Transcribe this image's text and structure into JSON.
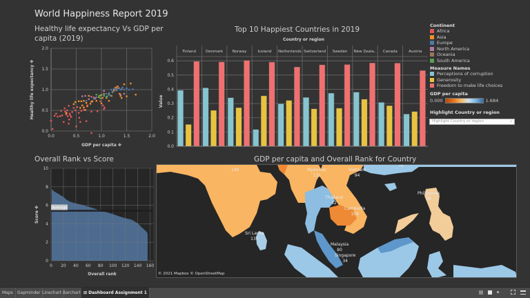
{
  "dashboard": {
    "title": "World Happiness Report 2019"
  },
  "scatter": {
    "title_line1": "Healthy life expectancy Vs GDP per",
    "title_line2": "capita (2019)",
    "chart_data": {
      "type": "scatter",
      "title": "Healthy life expectancy Vs GDP per capita (2019)",
      "xlabel": "GDP per capita",
      "ylabel": "Healthy life expectancy",
      "xlim": [
        0,
        2
      ],
      "ylim": [
        0,
        2
      ],
      "x_ticks": [
        "0.0",
        "0.5",
        "1.0",
        "1.5",
        "2.0"
      ],
      "y_ticks": [
        "0.0",
        "0.5",
        "1.0",
        "1.5",
        "2.0"
      ],
      "grid": true,
      "series": [
        {
          "name": "Africa",
          "color": "#e15759",
          "points": [
            [
              0.0,
              0.25
            ],
            [
              0.03,
              0.05
            ],
            [
              0.07,
              0.37
            ],
            [
              0.1,
              0.42
            ],
            [
              0.13,
              0.35
            ],
            [
              0.18,
              0.36
            ],
            [
              0.2,
              0.49
            ],
            [
              0.22,
              0.38
            ],
            [
              0.25,
              0.22
            ],
            [
              0.27,
              0.55
            ],
            [
              0.28,
              0.47
            ],
            [
              0.3,
              0.4
            ],
            [
              0.31,
              0.44
            ],
            [
              0.32,
              0.5
            ],
            [
              0.33,
              0.36
            ],
            [
              0.35,
              0.61
            ],
            [
              0.35,
              0.18
            ],
            [
              0.36,
              0.28
            ],
            [
              0.37,
              0.42
            ],
            [
              0.38,
              0.38
            ],
            [
              0.4,
              0.34
            ],
            [
              0.42,
              0.46
            ],
            [
              0.45,
              0.56
            ],
            [
              0.48,
              0.5
            ],
            [
              0.5,
              0.11
            ],
            [
              0.52,
              0.58
            ],
            [
              0.55,
              0.44
            ],
            [
              0.56,
              0.32
            ],
            [
              0.58,
              0.22
            ],
            [
              0.6,
              0.49
            ],
            [
              0.65,
              0.51
            ],
            [
              0.7,
              0.24
            ],
            [
              0.72,
              0.62
            ],
            [
              0.8,
              0.47
            ],
            [
              0.85,
              0.81
            ],
            [
              0.92,
              0.48
            ],
            [
              0.98,
              0.72
            ],
            [
              1.03,
              0.62
            ],
            [
              1.05,
              0.53
            ],
            [
              1.06,
              0.57
            ],
            [
              0.8,
              -0.05
            ]
          ]
        },
        {
          "name": "Asia",
          "color": "#f28e2b",
          "points": [
            [
              0.3,
              0.43
            ],
            [
              0.45,
              0.65
            ],
            [
              0.48,
              0.7
            ],
            [
              0.55,
              0.72
            ],
            [
              0.58,
              0.56
            ],
            [
              0.6,
              0.72
            ],
            [
              0.62,
              0.62
            ],
            [
              0.65,
              0.73
            ],
            [
              0.68,
              0.51
            ],
            [
              0.72,
              0.6
            ],
            [
              0.75,
              0.85
            ],
            [
              0.78,
              0.66
            ],
            [
              0.8,
              0.71
            ],
            [
              0.82,
              0.72
            ],
            [
              0.85,
              0.79
            ],
            [
              0.9,
              0.73
            ],
            [
              0.95,
              0.82
            ],
            [
              0.98,
              0.86
            ],
            [
              1.0,
              0.67
            ],
            [
              1.02,
              0.8
            ],
            [
              1.05,
              0.9
            ],
            [
              1.1,
              0.8
            ],
            [
              1.15,
              0.73
            ],
            [
              1.2,
              0.85
            ],
            [
              1.22,
              0.94
            ],
            [
              1.25,
              0.98
            ],
            [
              1.28,
              1.05
            ],
            [
              1.3,
              1.05
            ],
            [
              1.32,
              1.08
            ],
            [
              1.36,
              0.9
            ],
            [
              1.38,
              0.85
            ],
            [
              1.4,
              0.8
            ],
            [
              1.45,
              1.13
            ],
            [
              1.5,
              0.84
            ],
            [
              1.58,
              1.15
            ],
            [
              1.68,
              0.88
            ],
            [
              0.65,
              0.57
            ],
            [
              0.7,
              0.68
            ]
          ]
        },
        {
          "name": "Europe",
          "color": "#4e79a7",
          "points": [
            [
              0.7,
              0.73
            ],
            [
              0.85,
              0.78
            ],
            [
              0.9,
              0.82
            ],
            [
              0.95,
              0.85
            ],
            [
              1.0,
              0.88
            ],
            [
              1.05,
              0.87
            ],
            [
              1.1,
              0.9
            ],
            [
              1.15,
              0.92
            ],
            [
              1.2,
              1.0
            ],
            [
              1.22,
              0.95
            ],
            [
              1.25,
              1.02
            ],
            [
              1.28,
              1.0
            ],
            [
              1.3,
              0.98
            ],
            [
              1.32,
              1.03
            ],
            [
              1.35,
              1.04
            ],
            [
              1.38,
              1.0
            ],
            [
              1.4,
              1.02
            ],
            [
              1.42,
              1.05
            ],
            [
              1.45,
              1.0
            ],
            [
              1.5,
              1.03
            ],
            [
              1.55,
              1.0
            ],
            [
              1.62,
              1.01
            ],
            [
              1.18,
              0.86
            ],
            [
              1.12,
              0.84
            ]
          ]
        },
        {
          "name": "North America",
          "color": "#b07aa1",
          "points": [
            [
              0.62,
              0.84
            ],
            [
              0.68,
              0.85
            ],
            [
              0.75,
              0.77
            ],
            [
              0.8,
              0.83
            ],
            [
              0.88,
              0.79
            ],
            [
              1.0,
              0.87
            ],
            [
              1.05,
              0.97
            ],
            [
              1.1,
              0.82
            ],
            [
              1.38,
              0.88
            ],
            [
              1.45,
              0.9
            ]
          ]
        },
        {
          "name": "Oceania",
          "color": "#9c755f",
          "points": [
            [
              1.3,
              1.04
            ],
            [
              1.34,
              1.04
            ]
          ]
        },
        {
          "name": "South America",
          "color": "#59a14f",
          "points": [
            [
              0.9,
              0.88
            ],
            [
              0.95,
              0.84
            ],
            [
              1.0,
              0.87
            ],
            [
              1.05,
              0.85
            ],
            [
              1.1,
              0.83
            ],
            [
              1.15,
              0.88
            ],
            [
              0.98,
              0.79
            ]
          ]
        }
      ]
    }
  },
  "bar_chart": {
    "title": "Top 10 Happiest Countries in 2019",
    "column_header": "Country or region",
    "chart_data": {
      "type": "bar",
      "title": "Top 10 Happiest Countries in 2019",
      "xlabel": "Country or region",
      "ylabel": "Value",
      "ylim": [
        0,
        0.63
      ],
      "y_ticks": [
        "0.0",
        "0.1",
        "0.2",
        "0.3",
        "0.4",
        "0.5",
        "0.6"
      ],
      "categories": [
        "Finland",
        "Denmark",
        "Norway",
        "Iceland",
        "Netherlands",
        "Switzerland",
        "Sweden",
        "New Zeala..",
        "Canada",
        "Austria"
      ],
      "series": [
        {
          "name": "Perceptions of corruption",
          "color": "#86c5d0",
          "values": [
            0.393,
            0.41,
            0.341,
            0.118,
            0.298,
            0.343,
            0.373,
            0.38,
            0.308,
            0.226
          ]
        },
        {
          "name": "Generosity",
          "color": "#e8c340",
          "values": [
            0.153,
            0.252,
            0.271,
            0.354,
            0.322,
            0.263,
            0.267,
            0.33,
            0.285,
            0.244
          ]
        },
        {
          "name": "Freedom to make life choices",
          "color": "#f07070",
          "values": [
            0.596,
            0.592,
            0.603,
            0.591,
            0.557,
            0.572,
            0.574,
            0.585,
            0.584,
            0.532
          ]
        }
      ]
    }
  },
  "legend": {
    "continent_title": "Continent",
    "continents": [
      {
        "label": "Africa",
        "color": "#e15759"
      },
      {
        "label": "Asia",
        "color": "#f28e2b"
      },
      {
        "label": "Europe",
        "color": "#4e79a7"
      },
      {
        "label": "North America",
        "color": "#b07aa1"
      },
      {
        "label": "Oceania",
        "color": "#9c755f"
      },
      {
        "label": "South America",
        "color": "#59a14f"
      }
    ],
    "measure_title": "Measure Names",
    "measures": [
      {
        "label": "Perceptions of corruption",
        "color": "#86c5d0"
      },
      {
        "label": "Generosity",
        "color": "#e8c340"
      },
      {
        "label": "Freedom to make life choices",
        "color": "#f07070"
      }
    ],
    "gdp_title": "GDP per capita",
    "gdp_min": "0.000",
    "gdp_max": "1.684",
    "highlight_title": "Highlight Country or region",
    "highlight_placeholder": "Highlight Country or region"
  },
  "rank_chart": {
    "title": "Overall Rank vs Score",
    "reference_label": "Average",
    "chart_data": {
      "type": "area",
      "title": "Overall Rank vs Score",
      "xlabel": "Overall rank",
      "ylabel": "Score",
      "xlim": [
        0,
        165
      ],
      "ylim": [
        0,
        10
      ],
      "x_ticks": [
        "0",
        "20",
        "40",
        "60",
        "80",
        "100",
        "120",
        "140",
        "160"
      ],
      "y_ticks": [
        "0",
        "2",
        "4",
        "6",
        "8",
        "10"
      ],
      "reference_line": {
        "label": "Average",
        "value": 5.41
      },
      "x": [
        1,
        5,
        10,
        15,
        20,
        25,
        30,
        40,
        50,
        60,
        70,
        80,
        90,
        100,
        110,
        120,
        130,
        140,
        145,
        150,
        155,
        156
      ],
      "values": [
        7.77,
        7.5,
        7.3,
        7.1,
        6.9,
        6.6,
        6.4,
        6.2,
        6.05,
        5.85,
        5.65,
        5.4,
        5.25,
        5.05,
        4.8,
        4.6,
        4.45,
        4.05,
        3.7,
        3.4,
        3.1,
        2.85
      ]
    }
  },
  "map": {
    "title": "GDP per capita and Overall Rank for Country",
    "attribution": "© 2021 Mapbox © OpenStreetMap",
    "countries": [
      {
        "name": "India",
        "rank": "140",
        "show_name": false
      },
      {
        "name": "Myanmar",
        "rank": "131",
        "show_name": true
      },
      {
        "name": "Vietnam",
        "rank": "94",
        "show_name": true
      },
      {
        "name": "China",
        "rank": "76",
        "show_name": false
      },
      {
        "name": "Thailand",
        "rank": "52",
        "show_name": true
      },
      {
        "name": "Cambodia",
        "rank": "109",
        "show_name": true
      },
      {
        "name": "Sri Lanka",
        "rank": "130",
        "show_name": true
      },
      {
        "name": "Malaysia",
        "rank": "80",
        "show_name": true
      },
      {
        "name": "Singapore",
        "rank": "34",
        "show_name": true
      },
      {
        "name": "Philippines",
        "rank": "69",
        "show_name": true
      }
    ]
  },
  "tabs": [
    {
      "label": "Maps",
      "active": false
    },
    {
      "label": "Gapminder",
      "active": false
    },
    {
      "label": "Linechart",
      "active": false
    },
    {
      "label": "Barchart",
      "active": false
    },
    {
      "label": "Dashboard Assignment 1",
      "active": true
    }
  ],
  "status_icons": [
    "grid-view-icon",
    "single-view-icon",
    "dot-icon",
    "fullscreen-icon",
    "present-icon"
  ]
}
